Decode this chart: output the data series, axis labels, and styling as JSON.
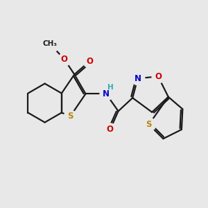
{
  "bg_color": "#e8e8e8",
  "bond_color": "#1a1a1a",
  "bond_width": 1.6,
  "atom_colors": {
    "S": "#b8860b",
    "N": "#0000cc",
    "O": "#cc0000",
    "H": "#2aadad",
    "C": "#1a1a1a"
  },
  "font_size": 8.5
}
